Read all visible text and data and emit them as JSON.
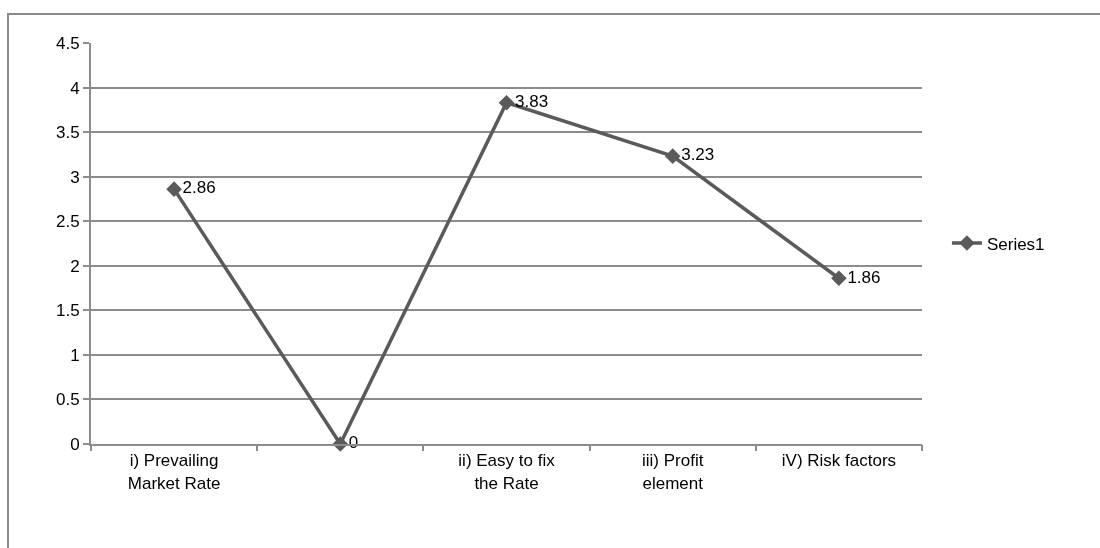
{
  "chart_data": {
    "type": "line",
    "categories": [
      "i) Prevailing Market Rate",
      null,
      "ii) Easy to fix the Rate",
      "iii) Profit element",
      "iV) Risk factors"
    ],
    "series": [
      {
        "name": "Series1",
        "color": "#5a5a5a",
        "values": [
          2.86,
          0,
          3.83,
          3.23,
          1.86
        ]
      }
    ],
    "ylim": [
      0,
      4.5
    ],
    "yticks": [
      0,
      0.5,
      1,
      1.5,
      2,
      2.5,
      3,
      3.5,
      4,
      4.5
    ],
    "grid": "y",
    "legend": "right",
    "marker": "diamond",
    "line_style": "solid",
    "data_labels": true
  }
}
